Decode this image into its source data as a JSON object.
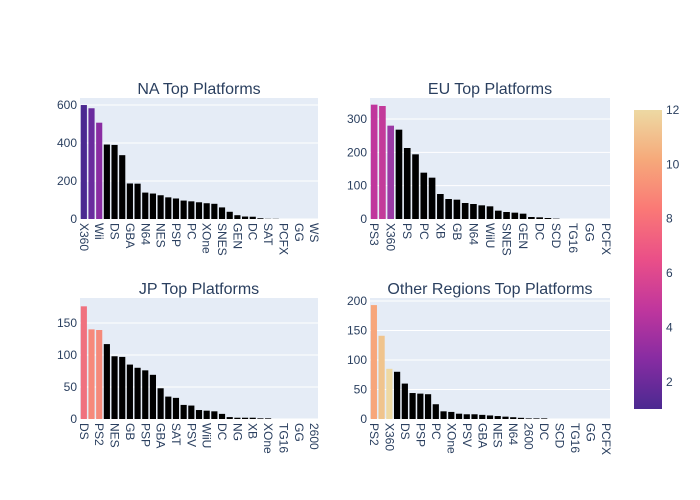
{
  "chart_data": [
    {
      "type": "bar",
      "title": "NA Top Platforms",
      "categories": [
        "X360",
        null,
        "Wii",
        null,
        "DS",
        null,
        "GBA",
        null,
        "N64",
        null,
        "NES",
        null,
        "PSP",
        null,
        "PC",
        null,
        "XOne",
        null,
        "SNES",
        null,
        "GEN",
        null,
        "DC",
        null,
        "SAT",
        null,
        "PCFX",
        null,
        "GG",
        null,
        "WS"
      ],
      "values": [
        600,
        583,
        507,
        392,
        390,
        336,
        187,
        186,
        139,
        134,
        125,
        114,
        108,
        97,
        93,
        88,
        83,
        80,
        61,
        38,
        20,
        13,
        12,
        4,
        1,
        1,
        0,
        0,
        0,
        0,
        0
      ],
      "colors": [
        "#4b2991",
        "#6a2b9e",
        "#8a2ca2",
        "#000000",
        "#000000",
        "#000000",
        "#000000",
        "#000000",
        "#000000",
        "#000000",
        "#000000",
        "#000000",
        "#000000",
        "#000000",
        "#000000",
        "#000000",
        "#000000",
        "#000000",
        "#000000",
        "#000000",
        "#000000",
        "#000000",
        "#000000",
        "#000000",
        "#000000",
        "#000000",
        "#000000",
        "#000000",
        "#000000",
        "#000000",
        "#000000"
      ],
      "ylim": [
        0,
        637
      ],
      "yticks": [
        0,
        200,
        400,
        600
      ]
    },
    {
      "type": "bar",
      "title": "EU Top Platforms",
      "categories": [
        "PS3",
        null,
        "X360",
        null,
        "PS",
        null,
        "PC",
        null,
        "XB",
        null,
        "GB",
        null,
        "N64",
        null,
        "WiiU",
        null,
        "SNES",
        null,
        "GEN",
        null,
        "DC",
        null,
        "SCD",
        null,
        "TG16",
        null,
        "GG",
        null,
        "PCFX"
      ],
      "values": [
        343,
        339,
        280,
        268,
        213,
        194,
        139,
        124,
        75,
        60,
        58,
        48,
        45,
        41,
        38,
        25,
        21,
        19,
        16,
        6,
        5,
        3,
        1,
        0,
        0,
        0,
        0,
        0,
        0
      ],
      "colors": [
        "#c0369d",
        "#c33a9a",
        "#9b3aa5",
        "#000000",
        "#000000",
        "#000000",
        "#000000",
        "#000000",
        "#000000",
        "#000000",
        "#000000",
        "#000000",
        "#000000",
        "#000000",
        "#000000",
        "#000000",
        "#000000",
        "#000000",
        "#000000",
        "#000000",
        "#000000",
        "#000000",
        "#000000",
        "#000000",
        "#000000",
        "#000000",
        "#000000",
        "#000000",
        "#000000"
      ],
      "ylim": [
        0,
        363
      ],
      "yticks": [
        0,
        100,
        200,
        300
      ]
    },
    {
      "type": "bar",
      "title": "JP Top Platforms",
      "categories": [
        "DS",
        null,
        "PS2",
        null,
        "NES",
        null,
        "GB",
        null,
        "PSP",
        null,
        "GBA",
        null,
        "SAT",
        null,
        "PSV",
        null,
        "WiiU",
        null,
        "DC",
        null,
        "NG",
        null,
        "XB",
        null,
        "XOne",
        null,
        "TG16",
        null,
        "GG",
        null,
        "2600"
      ],
      "values": [
        176,
        140,
        139,
        117,
        98,
        97,
        85,
        80,
        76,
        69,
        48,
        35,
        33,
        22,
        21,
        14,
        13,
        12,
        8,
        3,
        2,
        2,
        2,
        1,
        1,
        0,
        0,
        0,
        0,
        0,
        0
      ],
      "colors": [
        "#f0717f",
        "#f7897a",
        "#f58a7a",
        "#000000",
        "#000000",
        "#000000",
        "#000000",
        "#000000",
        "#000000",
        "#000000",
        "#000000",
        "#000000",
        "#000000",
        "#000000",
        "#000000",
        "#000000",
        "#000000",
        "#000000",
        "#000000",
        "#000000",
        "#000000",
        "#000000",
        "#000000",
        "#000000",
        "#000000",
        "#000000",
        "#000000",
        "#000000",
        "#000000",
        "#000000",
        "#000000"
      ],
      "ylim": [
        0,
        189
      ],
      "yticks": [
        0,
        50,
        100,
        150
      ]
    },
    {
      "type": "bar",
      "title": "Other Regions Top Platforms",
      "categories": [
        "PS2",
        null,
        "X360",
        null,
        "DS",
        null,
        "PSP",
        null,
        "PC",
        null,
        "XOne",
        null,
        "PSV",
        null,
        "GBA",
        null,
        "NES",
        null,
        "N64",
        null,
        "2600",
        null,
        "DC",
        null,
        "SCD",
        null,
        "TG16",
        null,
        "GG",
        null,
        "PCFX"
      ],
      "values": [
        193,
        141,
        85,
        80,
        60,
        44,
        43,
        42,
        25,
        13,
        12,
        9,
        8,
        8,
        7,
        6,
        5,
        4,
        3,
        2,
        1,
        1,
        1,
        0,
        0,
        0,
        0,
        0,
        0,
        0,
        0
      ],
      "colors": [
        "#f7a67b",
        "#f0c48d",
        "#eed9a3",
        "#000000",
        "#000000",
        "#000000",
        "#000000",
        "#000000",
        "#000000",
        "#000000",
        "#000000",
        "#000000",
        "#000000",
        "#000000",
        "#000000",
        "#000000",
        "#000000",
        "#000000",
        "#000000",
        "#000000",
        "#000000",
        "#000000",
        "#000000",
        "#000000",
        "#000000",
        "#000000",
        "#000000",
        "#000000",
        "#000000",
        "#000000",
        "#000000"
      ],
      "ylim": [
        0,
        205
      ],
      "yticks": [
        0,
        50,
        100,
        150,
        200
      ]
    }
  ],
  "coloraxis": {
    "colorscale": [
      "#4b2991",
      "#872ca2",
      "#c0369d",
      "#ea4f88",
      "#fa7876",
      "#f6a97a",
      "#edd9a3"
    ],
    "clim": [
      1,
      12
    ],
    "ticks": [
      2,
      4,
      6,
      8,
      10,
      12
    ]
  }
}
